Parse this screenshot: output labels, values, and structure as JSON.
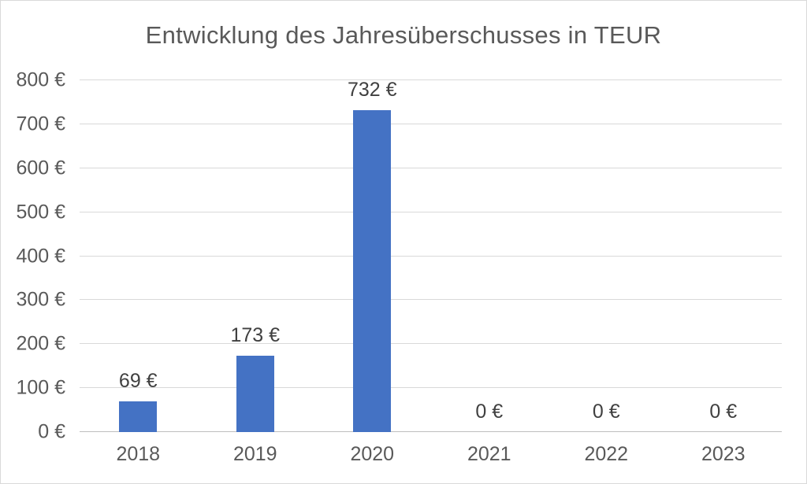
{
  "window": {
    "background": "#ffffff",
    "border_color": "#d9d9d9"
  },
  "chart_data": {
    "type": "bar",
    "title": "Entwicklung des Jahresüberschusses in TEUR",
    "categories": [
      "2018",
      "2019",
      "2020",
      "2021",
      "2022",
      "2023"
    ],
    "values": [
      69,
      173,
      732,
      0,
      0,
      0
    ],
    "data_labels": [
      "69 €",
      "173 €",
      "732 €",
      "0 €",
      "0 €",
      "0 €"
    ],
    "xlabel": "",
    "ylabel": "",
    "ylim": [
      0,
      800
    ],
    "y_ticks": [
      0,
      100,
      200,
      300,
      400,
      500,
      600,
      700,
      800
    ],
    "y_tick_labels": [
      "0 €",
      "100 €",
      "200 €",
      "300 €",
      "400 €",
      "500 €",
      "600 €",
      "700 €",
      "800 €"
    ],
    "grid": true,
    "legend": false,
    "colors": {
      "bar": "#4472c4",
      "title": "#595959",
      "axis_labels": "#595959",
      "data_labels": "#404040",
      "gridline": "#d9d9d9",
      "axis_line": "#bfbfbf"
    }
  }
}
